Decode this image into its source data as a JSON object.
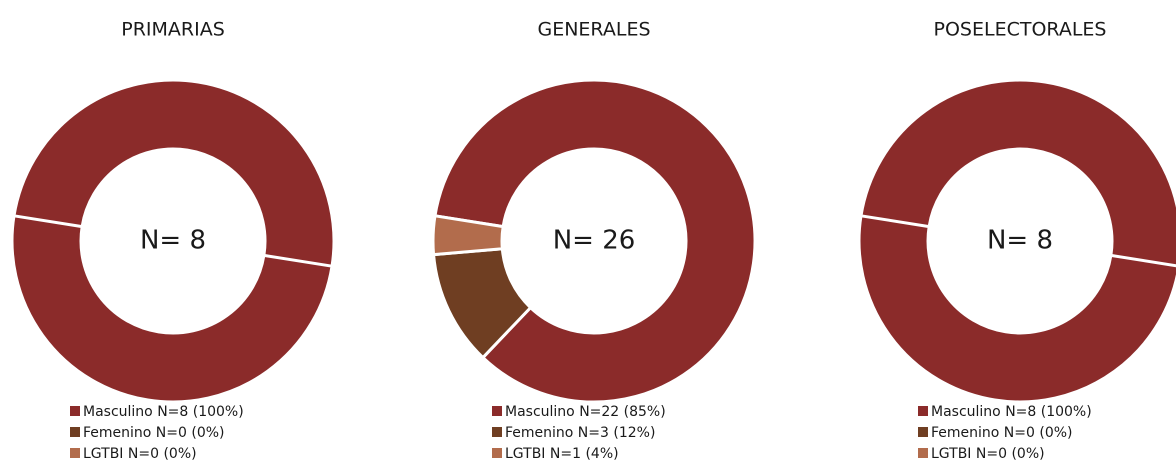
{
  "chart_data": [
    {
      "type": "pie",
      "title": "PRIMARIAS",
      "center_label": "N= 8",
      "categories": [
        "Masculino N=8 (100%)",
        "Femenino N=0 (0%)",
        "LGTBI N=0 (0%)"
      ],
      "values": [
        8,
        0,
        0
      ],
      "colors": [
        "#8b2b2a",
        "#6f3e22",
        "#b26c4c"
      ]
    },
    {
      "type": "pie",
      "title": "GENERALES",
      "center_label": "N= 26",
      "categories": [
        "Masculino N=22 (85%)",
        "Femenino N=3 (12%)",
        "LGTBI N=1 (4%)"
      ],
      "values": [
        22,
        3,
        1
      ],
      "colors": [
        "#8b2b2a",
        "#6f3e22",
        "#b26c4c"
      ]
    },
    {
      "type": "pie",
      "title": "POSELECTORALES",
      "center_label": "N= 8",
      "categories": [
        "Masculino N=8 (100%)",
        "Femenino N=0 (0%)",
        "LGTBI N=0 (0%)"
      ],
      "values": [
        8,
        0,
        0
      ],
      "colors": [
        "#8b2b2a",
        "#6f3e22",
        "#b26c4c"
      ]
    }
  ]
}
